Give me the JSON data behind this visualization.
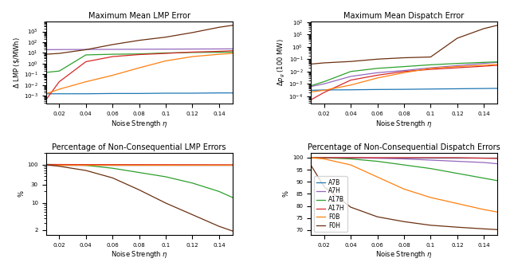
{
  "eta": [
    0.01,
    0.02,
    0.04,
    0.06,
    0.08,
    0.1,
    0.12,
    0.14,
    0.15
  ],
  "lmp_error": {
    "A7B": [
      0.0015,
      0.0015,
      0.0015,
      0.0016,
      0.0016,
      0.0017,
      0.0017,
      0.0018,
      0.0018
    ],
    "A7H": [
      20.0,
      20.5,
      21.0,
      21.5,
      22.0,
      22.5,
      23.0,
      23.5,
      24.0
    ],
    "A17B": [
      0.15,
      0.2,
      6.5,
      7.5,
      8.0,
      10.0,
      11.0,
      11.5,
      12.0
    ],
    "A17H": [
      0.0004,
      0.02,
      1.5,
      4.5,
      7.0,
      9.0,
      12.0,
      14.0,
      16.0
    ],
    "F0B": [
      0.0015,
      0.004,
      0.02,
      0.08,
      0.4,
      1.8,
      4.5,
      7.5,
      9.0
    ],
    "F0H": [
      7.5,
      9.0,
      20.0,
      60.0,
      150.0,
      300.0,
      800.0,
      2500.0,
      3800.0
    ]
  },
  "dispatch_error": {
    "A7B": [
      0.0003,
      0.00032,
      0.00033,
      0.00035,
      0.00036,
      0.00038,
      0.0004,
      0.00042,
      0.00043
    ],
    "A7H": [
      0.0006,
      0.001,
      0.004,
      0.008,
      0.012,
      0.02,
      0.03,
      0.045,
      0.055
    ],
    "A17B": [
      0.0007,
      0.0015,
      0.01,
      0.018,
      0.025,
      0.035,
      0.045,
      0.055,
      0.06
    ],
    "A17H": [
      5e-05,
      0.0002,
      0.002,
      0.005,
      0.01,
      0.015,
      0.02,
      0.027,
      0.032
    ],
    "F0B": [
      0.00022,
      0.0003,
      0.0008,
      0.003,
      0.008,
      0.018,
      0.025,
      0.032,
      0.037
    ],
    "F0H": [
      0.04,
      0.05,
      0.065,
      0.1,
      0.13,
      0.15,
      5.0,
      30.0,
      55.0
    ]
  },
  "lmp_pct": {
    "A7B": [
      100.0,
      100.0,
      100.0,
      100.0,
      100.0,
      100.0,
      100.0,
      100.0,
      100.0
    ],
    "A7H": [
      100.0,
      100.0,
      100.0,
      100.0,
      100.0,
      100.0,
      100.0,
      100.0,
      100.0
    ],
    "A17B": [
      100.0,
      99.5,
      95.0,
      80.0,
      62.0,
      48.0,
      33.0,
      20.0,
      14.0
    ],
    "A17H": [
      100.0,
      99.8,
      99.5,
      99.2,
      99.0,
      98.8,
      98.5,
      98.2,
      98.0
    ],
    "F0B": [
      100.0,
      100.0,
      100.0,
      100.0,
      100.0,
      100.0,
      100.0,
      100.0,
      100.0
    ],
    "F0H": [
      99.0,
      90.0,
      70.0,
      45.0,
      22.0,
      10.0,
      5.0,
      2.5,
      1.9
    ]
  },
  "dispatch_pct": {
    "A7B": [
      100.0,
      100.0,
      100.0,
      100.0,
      100.0,
      100.0,
      100.0,
      100.0,
      100.0
    ],
    "A7H": [
      100.0,
      100.0,
      100.0,
      99.8,
      99.5,
      99.0,
      98.5,
      98.0,
      97.5
    ],
    "A17B": [
      100.0,
      100.0,
      99.5,
      98.5,
      97.0,
      95.5,
      93.5,
      91.5,
      90.5
    ],
    "A17H": [
      100.0,
      100.0,
      100.0,
      100.0,
      100.0,
      100.0,
      100.0,
      99.8,
      99.7
    ],
    "F0B": [
      100.0,
      99.5,
      97.0,
      92.0,
      87.0,
      83.5,
      81.0,
      78.5,
      77.5
    ],
    "F0H": [
      97.0,
      88.0,
      79.5,
      75.5,
      73.5,
      72.0,
      71.2,
      70.5,
      70.2
    ]
  },
  "colors": {
    "A7B": "#1f77b4",
    "A7H": "#9467bd",
    "A17B": "#2ca02c",
    "A17H": "#d62728",
    "F0B": "#ff7f0e",
    "F0H": "#6b2f10"
  },
  "labels": [
    "A7B",
    "A7H",
    "A17B",
    "A17H",
    "F0B",
    "F0H"
  ],
  "titles": [
    "Maximum Mean LMP Error",
    "Maximum Mean Dispatch Error",
    "Percentage of Non-Consequential LMP Errors",
    "Percentage of Non-Consequential Dispatch Errors"
  ],
  "xlabel": "Noise Strength $\\eta$",
  "ylabels": [
    "$\\Delta$ LMP (\\$/MWh)",
    "$\\Delta p_g$ (100 MW)",
    "%",
    "%"
  ]
}
